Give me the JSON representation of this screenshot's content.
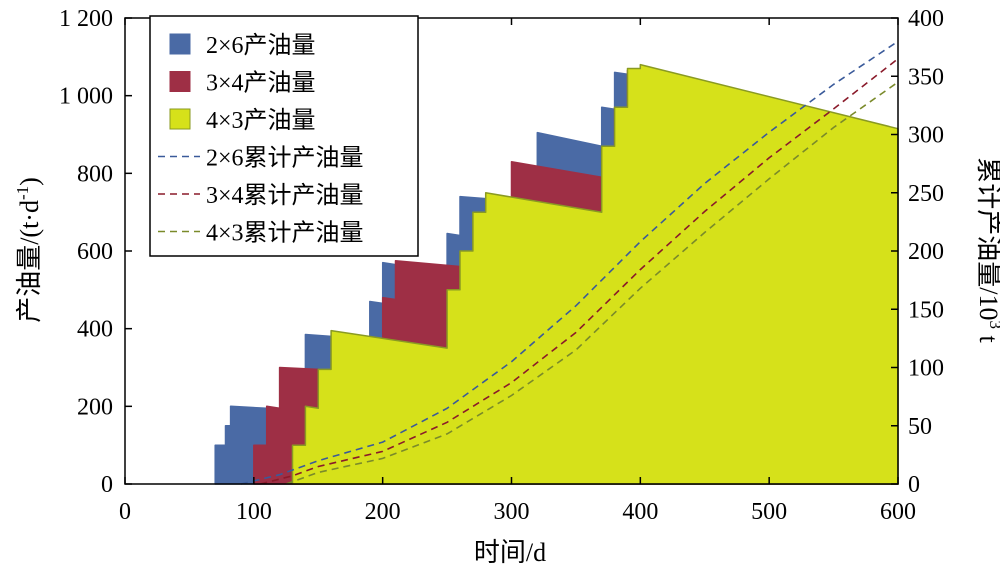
{
  "chart_data": {
    "type": "area",
    "xlabel": "时间/d",
    "ylabel": "产油量/(t·d",
    "ylabel_sup": "-1",
    "ylabel_close": ")",
    "y2label": "累计产油量/10",
    "y2label_sup": "3",
    "y2label_unit": " t",
    "xlim": [
      0,
      600
    ],
    "ylim": [
      0,
      1200
    ],
    "y2lim": [
      0,
      400
    ],
    "xticks": [
      0,
      100,
      200,
      300,
      400,
      500,
      600
    ],
    "xtick_labels": [
      "0",
      "100",
      "200",
      "300",
      "400",
      "500",
      "600"
    ],
    "yticks": [
      0,
      200,
      400,
      600,
      800,
      1000,
      1200
    ],
    "ytick_labels": [
      "0",
      "200",
      "400",
      "600",
      "800",
      "1 000",
      "1 200"
    ],
    "y2ticks": [
      0,
      50,
      100,
      150,
      200,
      250,
      300,
      350,
      400
    ],
    "y2tick_labels": [
      "0",
      "50",
      "100",
      "150",
      "200",
      "250",
      "300",
      "350",
      "400"
    ],
    "legend_position": "top-left",
    "colors": {
      "s2x6": "#4a6aa5",
      "s3x4": "#9e2f45",
      "s4x3": "#d6e11a",
      "s4x3_edge": "#8a9a22",
      "c2x6": "#3a5a9a",
      "c3x4": "#8a1a2a",
      "c4x3": "#7a8a2a"
    },
    "series": [
      {
        "name": "2×6产油量",
        "kind": "area",
        "x": [
          70,
          70,
          78,
          78,
          82,
          82,
          110,
          110,
          140,
          140,
          160,
          160,
          190,
          190,
          200,
          200,
          210,
          210,
          250,
          250,
          260,
          260,
          280,
          280,
          320,
          320,
          370,
          370,
          380,
          380,
          390,
          390,
          600
        ],
        "y": [
          0,
          100,
          100,
          150,
          150,
          200,
          195,
          0,
          0,
          385,
          380,
          0,
          0,
          470,
          465,
          570,
          565,
          0,
          0,
          645,
          640,
          740,
          735,
          0,
          0,
          905,
          870,
          970,
          965,
          1060,
          1055,
          0,
          0
        ]
      },
      {
        "name": "3×4产油量",
        "kind": "area",
        "x": [
          100,
          100,
          110,
          110,
          120,
          120,
          150,
          150,
          200,
          200,
          210,
          210,
          260,
          260,
          300,
          300,
          370,
          370,
          380,
          380,
          390,
          390,
          400,
          400,
          600
        ],
        "y": [
          0,
          100,
          100,
          200,
          195,
          300,
          295,
          0,
          0,
          480,
          475,
          575,
          560,
          0,
          0,
          830,
          790,
          0,
          0,
          970,
          965,
          1065,
          1055,
          0,
          0
        ]
      },
      {
        "name": "4×3产油量",
        "kind": "area",
        "x": [
          130,
          130,
          140,
          140,
          150,
          150,
          160,
          160,
          250,
          250,
          260,
          260,
          270,
          270,
          280,
          280,
          370,
          370,
          380,
          380,
          390,
          390,
          400,
          400,
          600,
          600
        ],
        "y": [
          0,
          100,
          100,
          200,
          195,
          295,
          295,
          395,
          350,
          500,
          500,
          600,
          600,
          700,
          700,
          750,
          700,
          870,
          870,
          970,
          970,
          1070,
          1070,
          1080,
          915,
          0
        ]
      },
      {
        "name": "2×6累计产油量",
        "kind": "line",
        "axis": "y2",
        "x": [
          90,
          120,
          150,
          200,
          250,
          300,
          350,
          400,
          450,
          500,
          550,
          600
        ],
        "y": [
          0,
          8,
          20,
          36,
          65,
          105,
          153,
          208,
          258,
          302,
          343,
          380
        ]
      },
      {
        "name": "3×4累计产油量",
        "kind": "line",
        "axis": "y2",
        "x": [
          105,
          130,
          150,
          200,
          250,
          300,
          350,
          400,
          450,
          500,
          550,
          600
        ],
        "y": [
          0,
          7,
          15,
          28,
          53,
          87,
          130,
          184,
          234,
          280,
          322,
          365
        ]
      },
      {
        "name": "4×3累计产油量",
        "kind": "line",
        "axis": "y2",
        "x": [
          125,
          150,
          200,
          250,
          300,
          350,
          400,
          450,
          500,
          550,
          600
        ],
        "y": [
          0,
          10,
          22,
          43,
          76,
          115,
          168,
          216,
          262,
          306,
          345
        ]
      }
    ]
  }
}
